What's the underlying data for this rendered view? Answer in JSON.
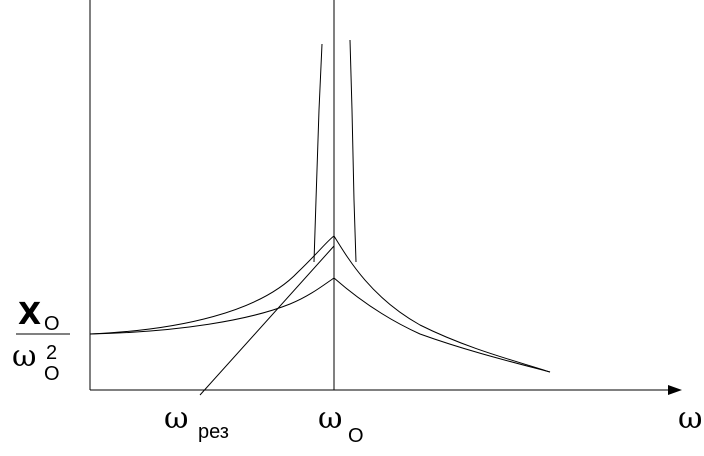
{
  "axis": {
    "x_label": "ω",
    "y_label_numerator_main": "X",
    "y_label_numerator_sub": "O",
    "y_label_denominator_main": "ω",
    "y_label_denominator_sup": "2",
    "y_label_denominator_sub": "O"
  },
  "ticks": {
    "omega_res_main": "ω",
    "omega_res_sub": "рез",
    "omega0_main": "ω",
    "omega0_sub": "O"
  },
  "curves": [
    {
      "name": "resonance-no-damping",
      "description": "diverges near ω0"
    },
    {
      "name": "resonance-small-damping"
    },
    {
      "name": "resonance-large-damping"
    }
  ],
  "line_color": "#000000"
}
